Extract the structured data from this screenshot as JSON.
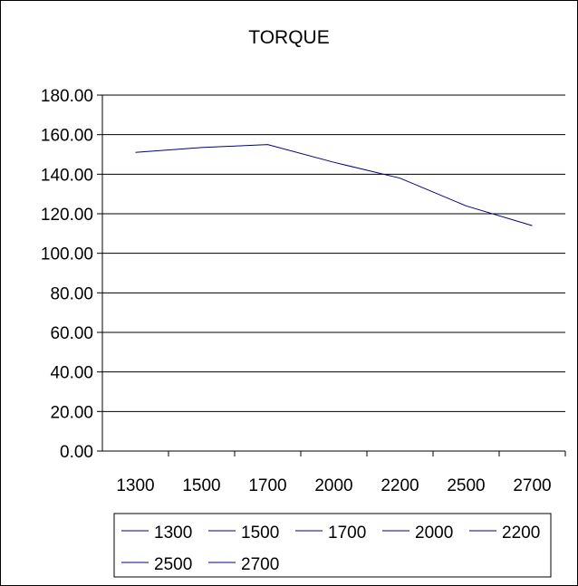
{
  "chart_data": {
    "type": "line",
    "title": "TORQUE",
    "xlabel": "",
    "ylabel": "",
    "categories": [
      "1300",
      "1500",
      "1700",
      "2000",
      "2200",
      "2500",
      "2700"
    ],
    "series": [
      {
        "values": [
          151,
          153.5,
          155,
          146,
          138,
          124,
          114
        ]
      }
    ],
    "ylim": [
      0,
      180
    ],
    "yticks": [
      "0.00",
      "20.00",
      "40.00",
      "60.00",
      "80.00",
      "100.00",
      "120.00",
      "140.00",
      "160.00",
      "180.00"
    ],
    "legend": {
      "placement": "bottom",
      "entries": [
        "1300",
        "1500",
        "1700",
        "2000",
        "2200",
        "2500",
        "2700"
      ]
    },
    "grid": true,
    "line_color": "#000080",
    "grid_color": "#000000"
  }
}
